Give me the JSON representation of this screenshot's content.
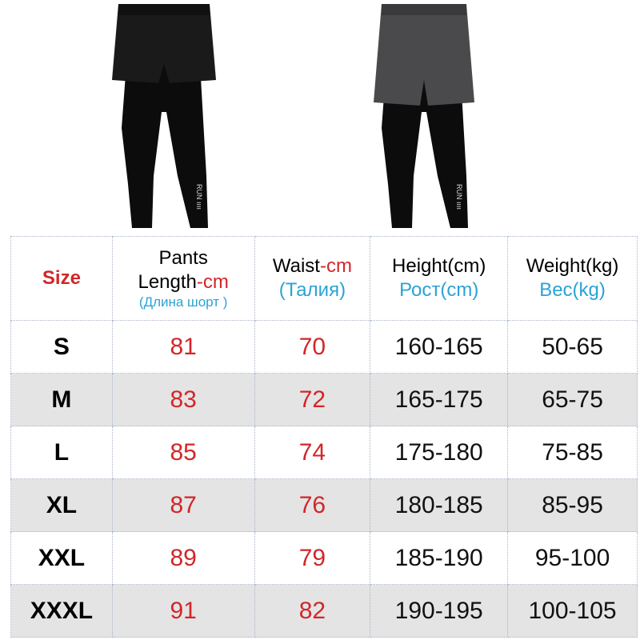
{
  "products": [
    {
      "name": "black-shorts-leggings",
      "shorts_color": "#1a1a1a",
      "legs_color": "#0c0c0c",
      "print": "RUN"
    },
    {
      "name": "gray-shorts-leggings",
      "shorts_color": "#4a4a4c",
      "legs_color": "#0c0c0c",
      "print": "RUN"
    }
  ],
  "table": {
    "headers": {
      "size": "Size",
      "pants_line1": "Pants",
      "pants_line2": "Length",
      "pants_unit": "-cm",
      "pants_ru": "(Длина шорт )",
      "waist": "Waist",
      "waist_unit": "-cm",
      "waist_ru": "(Талия)",
      "height": "Height(cm)",
      "height_ru": "Рост(cm)",
      "weight": "Weight(kg)",
      "weight_ru": "Вес(kg)"
    },
    "rows": [
      {
        "size": "S",
        "length": "81",
        "waist": "70",
        "height": "160-165",
        "weight": "50-65"
      },
      {
        "size": "M",
        "length": "83",
        "waist": "72",
        "height": "165-175",
        "weight": "65-75"
      },
      {
        "size": "L",
        "length": "85",
        "waist": "74",
        "height": "175-180",
        "weight": "75-85"
      },
      {
        "size": "XL",
        "length": "87",
        "waist": "76",
        "height": "180-185",
        "weight": "85-95"
      },
      {
        "size": "XXL",
        "length": "89",
        "waist": "79",
        "height": "185-190",
        "weight": "95-100"
      },
      {
        "size": "XXXL",
        "length": "91",
        "waist": "82",
        "height": "190-195",
        "weight": "100-105"
      }
    ],
    "colors": {
      "red": "#d2262a",
      "blue": "#2aa3d6",
      "alt_row": "#e4e4e4"
    }
  }
}
